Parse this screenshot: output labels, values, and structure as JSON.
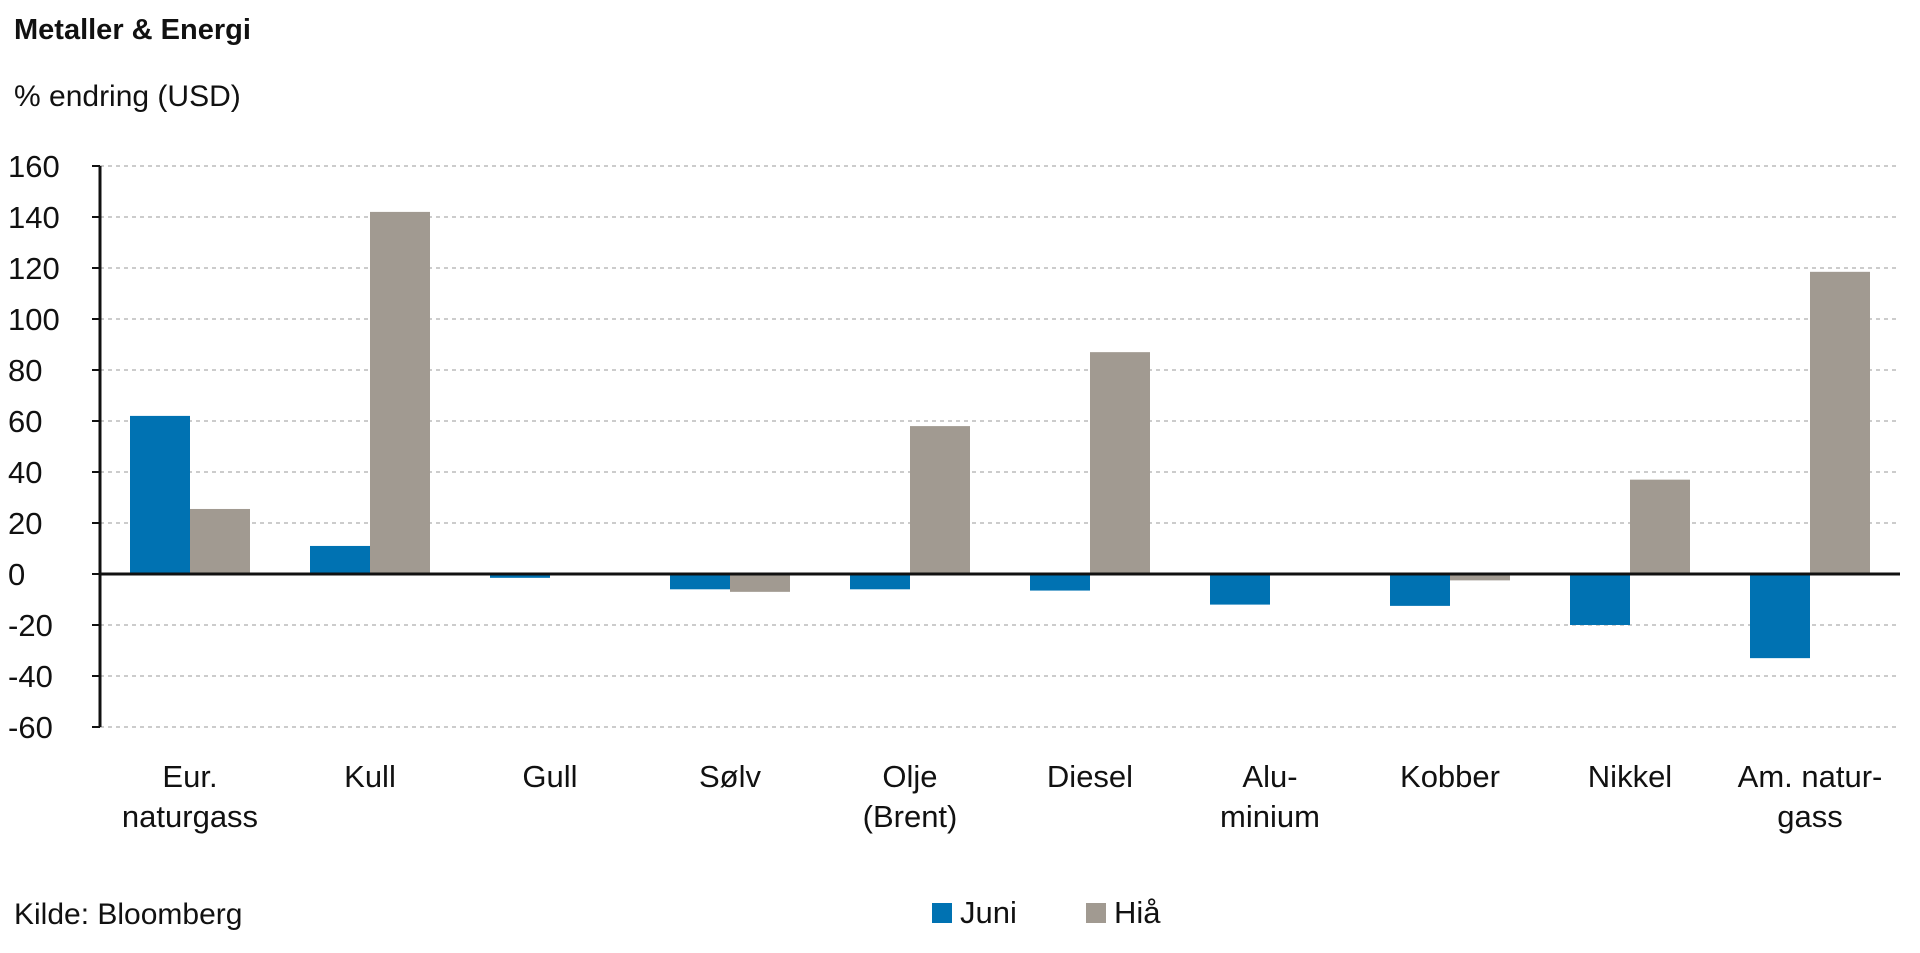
{
  "header": {
    "title": "Metaller & Energi",
    "subtitle": "% endring (USD)"
  },
  "footer": {
    "source": "Kilde: Bloomberg"
  },
  "chart_data": {
    "type": "bar",
    "title": "Metaller & Energi",
    "ylabel": "% endring (USD)",
    "xlabel": "",
    "ylim": [
      -60,
      160
    ],
    "yticks": [
      160,
      140,
      120,
      100,
      80,
      60,
      40,
      20,
      0,
      -20,
      -40,
      -60
    ],
    "grid": true,
    "legend_position": "bottom-center",
    "categories": [
      [
        "Eur.",
        "naturgass"
      ],
      [
        "Kull"
      ],
      [
        "Gull"
      ],
      [
        "Sølv"
      ],
      [
        "Olje",
        "(Brent)"
      ],
      [
        "Diesel"
      ],
      [
        "Alu-",
        "minium"
      ],
      [
        "Kobber"
      ],
      [
        "Nikkel"
      ],
      [
        "Am. natur-",
        "gass"
      ]
    ],
    "series": [
      {
        "name": "Juni",
        "color": "#0072b2",
        "values": [
          62,
          11,
          -1.5,
          -6,
          -6,
          -6.5,
          -12,
          -12.5,
          -20,
          -33
        ]
      },
      {
        "name": "Hiå",
        "color": "#a19a91",
        "values": [
          25.5,
          142,
          0,
          -7,
          58,
          87,
          0,
          -2.5,
          37,
          118.5
        ]
      }
    ]
  }
}
